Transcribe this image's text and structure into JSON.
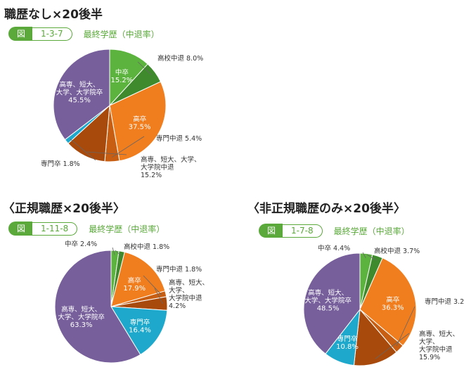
{
  "chart_data": [
    {
      "type": "pie",
      "title": "職歴なし×20後半",
      "figure_label": "図",
      "figure_number": "1-3-7",
      "caption": "最終学歴（中退率）",
      "series": [
        {
          "label": "中卒",
          "value": 15.2,
          "color": "#5cb43e",
          "label_inside": true
        },
        {
          "label": "高校中退",
          "value": 8.0,
          "color": "#3e8a2c",
          "label_inside": false
        },
        {
          "label": "高卒",
          "value": 37.5,
          "color": "#f07d1e",
          "label_inside": true
        },
        {
          "label": "専門中退",
          "value": 5.4,
          "color": "#c75e12",
          "label_inside": false
        },
        {
          "label": "高専、短大、大学、大学院中退",
          "value": 15.2,
          "color": "#a84a0c",
          "label_inside": false
        },
        {
          "label": "専門卒",
          "value": 1.8,
          "color": "#1ea9cc",
          "label_inside": false
        },
        {
          "label": "高専、短大、大学、大学院卒",
          "value": 45.5,
          "color": "#765f9a",
          "label_inside": true
        }
      ]
    },
    {
      "type": "pie",
      "title": "〈正規職歴×20後半〉",
      "figure_label": "図",
      "figure_number": "1-11-8",
      "caption": "最終学歴（中退率）",
      "series": [
        {
          "label": "中卒",
          "value": 2.4,
          "color": "#5cb43e",
          "label_inside": false
        },
        {
          "label": "高校中退",
          "value": 1.8,
          "color": "#3e8a2c",
          "label_inside": false
        },
        {
          "label": "高卒",
          "value": 17.9,
          "color": "#f07d1e",
          "label_inside": true
        },
        {
          "label": "専門中退",
          "value": 1.8,
          "color": "#c75e12",
          "label_inside": false
        },
        {
          "label": "高専、短大、大学、大学院中退",
          "value": 4.2,
          "color": "#a84a0c",
          "label_inside": false
        },
        {
          "label": "専門卒",
          "value": 16.4,
          "color": "#1ea9cc",
          "label_inside": true
        },
        {
          "label": "高専、短大、大学、大学院卒",
          "value": 63.3,
          "color": "#765f9a",
          "label_inside": true
        }
      ]
    },
    {
      "type": "pie",
      "title": "〈非正規職歴のみ×20後半〉",
      "figure_label": "図",
      "figure_number": "1-7-8",
      "caption": "最終学歴（中退率）",
      "series": [
        {
          "label": "中卒",
          "value": 4.4,
          "color": "#5cb43e",
          "label_inside": false
        },
        {
          "label": "高校中退",
          "value": 3.7,
          "color": "#3e8a2c",
          "label_inside": false
        },
        {
          "label": "高卒",
          "value": 36.3,
          "color": "#f07d1e",
          "label_inside": true
        },
        {
          "label": "専門中退",
          "value": 3.2,
          "color": "#c75e12",
          "label_inside": false
        },
        {
          "label": "高専、短大、大学、大学院中退",
          "value": 15.9,
          "color": "#a84a0c",
          "label_inside": false
        },
        {
          "label": "専門卒",
          "value": 10.8,
          "color": "#1ea9cc",
          "label_inside": true
        },
        {
          "label": "高専、短大、大学、大学院卒",
          "value": 48.5,
          "color": "#765f9a",
          "label_inside": true
        }
      ]
    }
  ]
}
